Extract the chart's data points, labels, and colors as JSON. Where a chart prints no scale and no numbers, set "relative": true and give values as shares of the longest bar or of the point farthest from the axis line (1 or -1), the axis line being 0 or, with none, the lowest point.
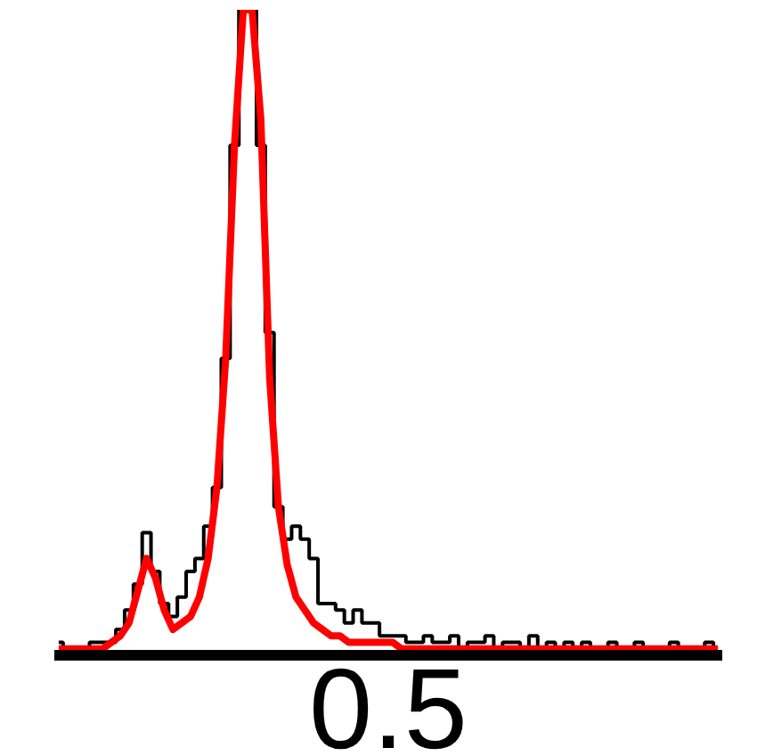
{
  "chart_data": {
    "type": "line",
    "relative": true,
    "grid": false,
    "categories": [
      null,
      null,
      null,
      null,
      null,
      null,
      null,
      null,
      null,
      null,
      null,
      null,
      null,
      null,
      null,
      null,
      null,
      null,
      null,
      null,
      null,
      null,
      null,
      null,
      null,
      null,
      null,
      null,
      null,
      null,
      null,
      null,
      null,
      null,
      null,
      null,
      null,
      null,
      null,
      null,
      null,
      null,
      null,
      null,
      null,
      null,
      null,
      null,
      null,
      null,
      null,
      null,
      null,
      null,
      null,
      null,
      null,
      null,
      null,
      null,
      null,
      null,
      null,
      null,
      null,
      null,
      null,
      null,
      null,
      null,
      null,
      null,
      null,
      null,
      null,
      null
    ],
    "series": [
      {
        "type": "step",
        "color": "#000000",
        "values": [
          0.02,
          0.01,
          0.01,
          0.01,
          0.02,
          0.02,
          0.02,
          0.04,
          0.07,
          0.11,
          0.19,
          0.13,
          0.08,
          0.06,
          0.09,
          0.13,
          0.15,
          0.2,
          0.26,
          0.46,
          0.79,
          1,
          1,
          0.79,
          0.5,
          0.23,
          0.18,
          0.2,
          0.18,
          0.15,
          0.08,
          0.08,
          0.07,
          0.05,
          0.07,
          0.05,
          0.05,
          0.03,
          0.03,
          0.03,
          0.02,
          0.02,
          0.03,
          0.02,
          0.02,
          0.03,
          0.01,
          0.02,
          0.02,
          0.03,
          0.01,
          0.02,
          0.02,
          0.01,
          0.03,
          0.01,
          0.02,
          0.01,
          0.02,
          0.01,
          0.02,
          0.01,
          0.01,
          0.02,
          0.01,
          0.01,
          0.02,
          0.01,
          0.01,
          0.01,
          0.02,
          0.01,
          0.01,
          0.01,
          0.02,
          0.01
        ]
      },
      {
        "color": "#ff0000",
        "values": [
          0.01,
          0.01,
          0.01,
          0.01,
          0.01,
          0.01,
          0.02,
          0.03,
          0.05,
          0.1,
          0.15,
          0.12,
          0.07,
          0.04,
          0.05,
          0.06,
          0.09,
          0.15,
          0.26,
          0.46,
          0.79,
          1,
          1,
          0.83,
          0.43,
          0.23,
          0.14,
          0.09,
          0.07,
          0.05,
          0.04,
          0.03,
          0.03,
          0.02,
          0.02,
          0.02,
          0.02,
          0.02,
          0.02,
          0.01,
          0.01,
          0.01,
          0.01,
          0.01,
          0.01,
          0.01,
          0.01,
          0.01,
          0.01,
          0.01,
          0.01,
          0.01,
          0.01,
          0.01,
          0.01,
          0.01,
          0.01,
          0.01,
          0.01,
          0.01,
          0.01,
          0.01,
          0.01,
          0.01,
          0.01,
          0.01,
          0.01,
          0.01,
          0.01,
          0.01,
          0.01,
          0.01,
          0.01,
          0.01,
          0.01,
          0.01
        ]
      }
    ],
    "annotations": [
      "0.5"
    ]
  }
}
